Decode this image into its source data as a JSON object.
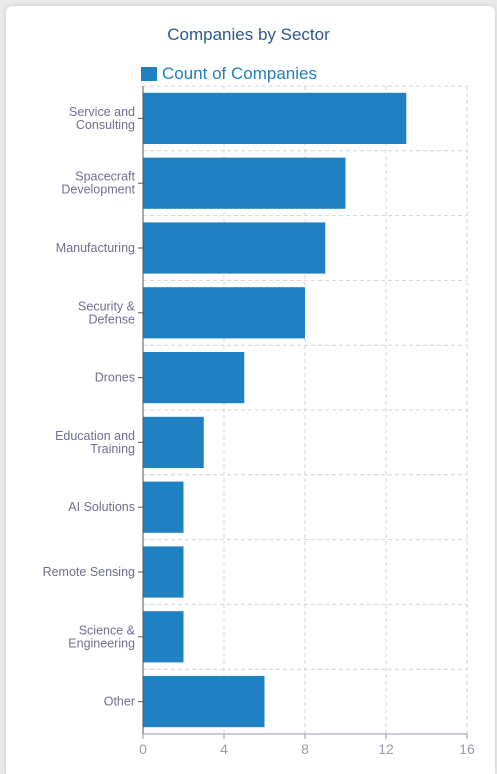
{
  "chart_data": {
    "type": "bar",
    "orientation": "horizontal",
    "title": "Companies by Sector",
    "categories": [
      "Service and\nConsulting",
      "Spacecraft\nDevelopment",
      "Manufacturing",
      "Security &\nDefense",
      "Drones",
      "Education and\nTraining",
      "AI Solutions",
      "Remote Sensing",
      "Science &\nEngineering",
      "Other"
    ],
    "series": [
      {
        "name": "Count of Companies",
        "values": [
          13,
          10,
          9,
          8,
          5,
          3,
          2,
          2,
          2,
          6
        ]
      }
    ],
    "xlim": [
      0,
      16
    ],
    "xticks": [
      "0",
      "4",
      "8",
      "12",
      "16"
    ],
    "grid": true,
    "legend_position": "top",
    "colors": {
      "bar": "#1f80c2",
      "title": "#2a5a8c",
      "grid": "#d4d4d4"
    }
  }
}
